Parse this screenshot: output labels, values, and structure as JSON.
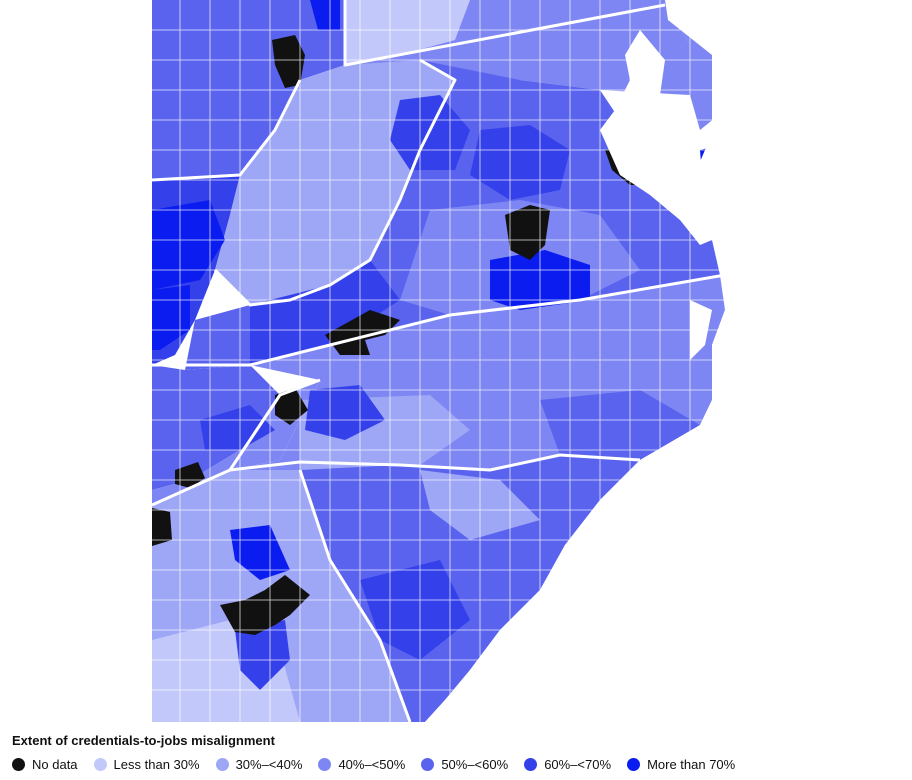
{
  "legend": {
    "title": "Extent of credentials-to-jobs misalignment",
    "items": [
      {
        "label": "No data",
        "color": "#111111"
      },
      {
        "label": "Less than 30%",
        "color": "#c3c8fb"
      },
      {
        "label": "30%–<40%",
        "color": "#9ea6f6"
      },
      {
        "label": "40%–<50%",
        "color": "#7d86f2"
      },
      {
        "label": "50%–<60%",
        "color": "#5a63ee"
      },
      {
        "label": "60%–<70%",
        "color": "#3440ea"
      },
      {
        "label": "More than 70%",
        "color": "#0a1cf0"
      }
    ]
  },
  "map": {
    "region": "choropleth-counties",
    "border_color": "#ffffff"
  }
}
